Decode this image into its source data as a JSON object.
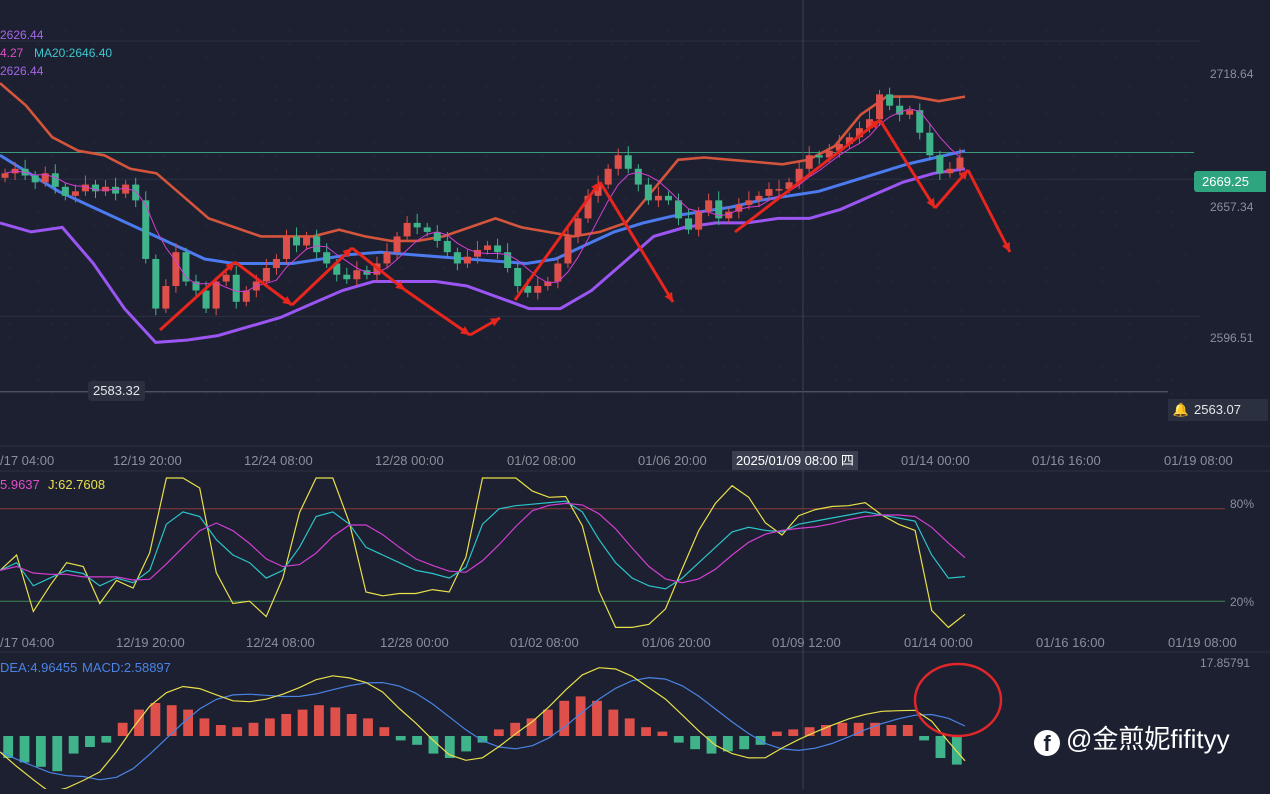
{
  "theme": {
    "bg": "#1c2030",
    "up": "#e0504a",
    "down": "#3fb38a",
    "mid": "#4c7bf0",
    "band": "#9b55f2",
    "bandUpper": "#d4553c",
    "k": "#2cc4c9",
    "d": "#d23ed2",
    "j": "#e9e04a",
    "dif": "#e8df4a",
    "dea": "#4a84e6",
    "arrow": "#e8261e",
    "circle": "#e0262b"
  },
  "legend": {
    "line1": "2626.44",
    "line2a": "4.27",
    "line2b": "MA20:2646.40",
    "line3": "2626.44"
  },
  "price_axis": {
    "ticks": [
      "2718.64",
      "2657.34",
      "2596.51"
    ],
    "current": "2669.25",
    "alert": "2563.07",
    "low_label": "2583.32"
  },
  "time_axis": {
    "labels": [
      "/17 04:00",
      "12/19 20:00",
      "12/24 08:00",
      "12/28 00:00",
      "01/02 08:00",
      "01/06 20:00",
      "01/14 00:00",
      "01/16 16:00",
      "01/19 08:00"
    ],
    "crosshair": "2025/01/09 08:00 四"
  },
  "kdj": {
    "legend_d": "5.9637",
    "legend_j": "J:62.7608",
    "level_high": "80%",
    "level_low": "20%",
    "labels": [
      "/17 04:00",
      "12/19 20:00",
      "12/24 08:00",
      "12/28 00:00",
      "01/02 08:00",
      "01/06 20:00",
      "01/09 12:00",
      "01/14 00:00",
      "01/16 16:00",
      "01/19 08:00"
    ]
  },
  "macd": {
    "legend_dea": "DEA:4.96455",
    "legend_macd": "MACD:2.58897",
    "top_value": "17.85791"
  },
  "watermark": "@金煎妮fifityy",
  "chart_data": {
    "type": "candlestick",
    "symbol_hint": "price chart with Bollinger Bands, KDJ and MACD",
    "y_ticks": [
      2718.64,
      2657.34,
      2596.51
    ],
    "low_marker": 2583.32,
    "last_price": 2669.25,
    "alert_line": 2563.07,
    "x_labels": [
      "/17 04:00",
      "12/19 20:00",
      "12/24 08:00",
      "12/28 00:00",
      "01/02 08:00",
      "01/06 20:00",
      "01/14 00:00",
      "01/16 16:00",
      "01/19 08:00"
    ],
    "closes": [
      2660,
      2662,
      2659,
      2656,
      2660,
      2654,
      2650,
      2652,
      2655,
      2652,
      2654,
      2651,
      2655,
      2648,
      2622,
      2600,
      2610,
      2625,
      2612,
      2608,
      2600,
      2612,
      2615,
      2603,
      2608,
      2612,
      2618,
      2622,
      2632,
      2628,
      2632,
      2625,
      2620,
      2615,
      2613,
      2617,
      2615,
      2620,
      2625,
      2632,
      2638,
      2636,
      2634,
      2630,
      2625,
      2620,
      2623,
      2626,
      2628,
      2625,
      2618,
      2610,
      2607,
      2610,
      2612,
      2620,
      2632,
      2640,
      2650,
      2655,
      2662,
      2668,
      2662,
      2655,
      2648,
      2650,
      2648,
      2640,
      2635,
      2643,
      2648,
      2640,
      2643,
      2646,
      2648,
      2650,
      2653,
      2653,
      2656,
      2662,
      2668,
      2667,
      2670,
      2673,
      2676,
      2680,
      2684,
      2695,
      2690,
      2686,
      2688,
      2678,
      2668,
      2660,
      2662,
      2667
    ],
    "bollinger_upper": [
      2700,
      2690,
      2676,
      2670,
      2668,
      2662,
      2660,
      2650,
      2640,
      2636,
      2632,
      2632,
      2632,
      2635,
      2632,
      2630,
      2630,
      2632,
      2636,
      2640,
      2636,
      2634,
      2632,
      2634,
      2638,
      2652,
      2666,
      2667,
      2666,
      2665,
      2664,
      2666,
      2672,
      2686,
      2694,
      2694,
      2692,
      2694
    ],
    "bollinger_mid": [
      2668,
      2660,
      2652,
      2646,
      2640,
      2634,
      2628,
      2622,
      2620,
      2620,
      2620,
      2622,
      2624,
      2625,
      2624,
      2623,
      2622,
      2621,
      2620,
      2622,
      2628,
      2634,
      2638,
      2641,
      2643,
      2645,
      2648,
      2650,
      2652,
      2656,
      2660,
      2664,
      2667,
      2670
    ],
    "bollinger_lower": [
      2638,
      2634,
      2636,
      2620,
      2600,
      2585,
      2586,
      2588,
      2592,
      2596,
      2602,
      2608,
      2612,
      2612,
      2612,
      2610,
      2605,
      2600,
      2600,
      2608,
      2620,
      2632,
      2636,
      2638,
      2638,
      2640,
      2640,
      2644,
      2650,
      2656,
      2660,
      2662
    ],
    "kdj_levels": [
      80,
      20
    ],
    "macd": {
      "dea": 4.96455,
      "macd": 2.58897,
      "axis_top": 17.85791
    }
  }
}
